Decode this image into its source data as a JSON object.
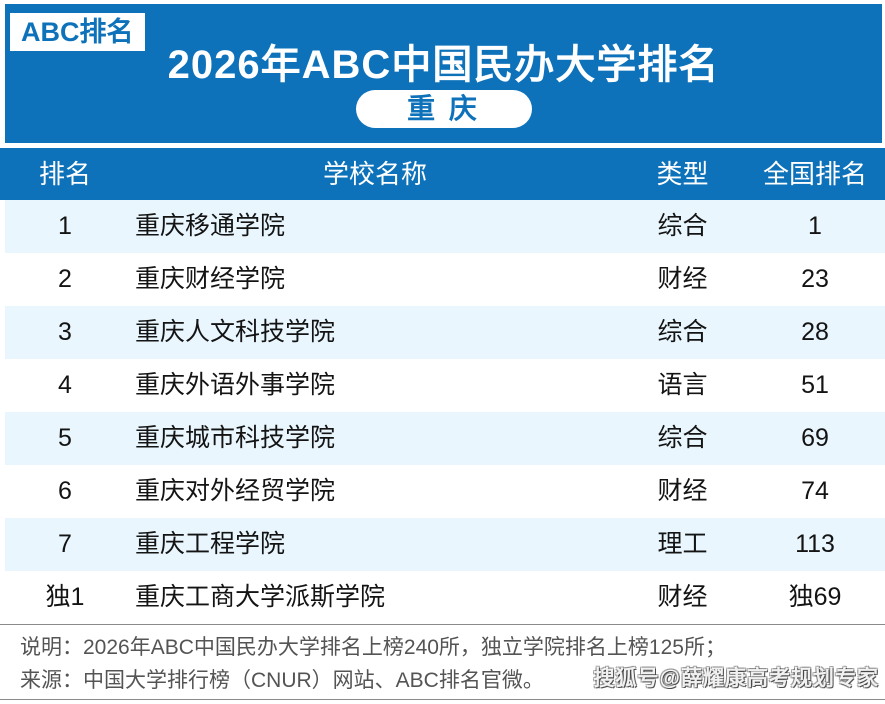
{
  "brand": {
    "badge": "ABC排名"
  },
  "header": {
    "title": "2026年ABC中国民办大学排名",
    "region": "重 庆"
  },
  "chart_data": {
    "type": "table",
    "title": "2026年ABC中国民办大学排名",
    "region": "重庆",
    "columns": [
      "排名",
      "学校名称",
      "类型",
      "全国排名"
    ],
    "rows": [
      [
        "1",
        "重庆移通学院",
        "综合",
        "1"
      ],
      [
        "2",
        "重庆财经学院",
        "财经",
        "23"
      ],
      [
        "3",
        "重庆人文科技学院",
        "综合",
        "28"
      ],
      [
        "4",
        "重庆外语外事学院",
        "语言",
        "51"
      ],
      [
        "5",
        "重庆城市科技学院",
        "综合",
        "69"
      ],
      [
        "6",
        "重庆对外经贸学院",
        "财经",
        "74"
      ],
      [
        "7",
        "重庆工程学院",
        "理工",
        "113"
      ],
      [
        "独1",
        "重庆工商大学派斯学院",
        "财经",
        "独69"
      ]
    ],
    "notes": {
      "listed_private_universities": 240,
      "listed_independent_colleges": 125
    }
  },
  "footer": {
    "note": "说明：2026年ABC中国民办大学排名上榜240所，独立学院排名上榜125所；",
    "source": "来源：中国大学排行榜（CNUR）网站、ABC排名官微。",
    "watermark": "搜狐号@薛耀康高考规划专家"
  },
  "colors": {
    "primary_blue": "#0d72ba",
    "row_stripe": "#e9f6fd",
    "footer_text": "#545454"
  }
}
